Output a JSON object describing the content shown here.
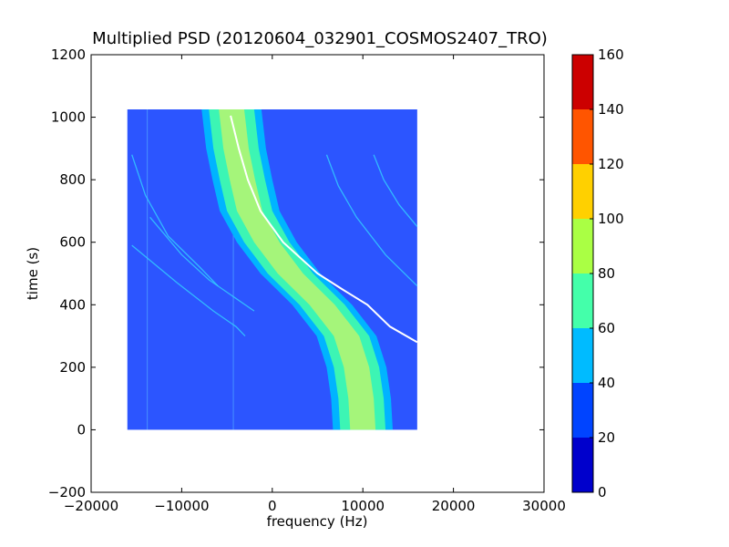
{
  "chart_data": {
    "type": "heatmap",
    "title": "Multiplied PSD (20120604_032901_COSMOS2407_TRO)",
    "xlabel": "frequency (Hz)",
    "ylabel": "time (s)",
    "xlim": [
      -20000,
      30000
    ],
    "ylim": [
      -200,
      1200
    ],
    "xticks": [
      -20000,
      -10000,
      0,
      10000,
      20000,
      30000
    ],
    "xtick_labels": [
      "−20000",
      "−10000",
      "0",
      "10000",
      "20000",
      "30000"
    ],
    "yticks": [
      -200,
      0,
      200,
      400,
      600,
      800,
      1000,
      1200
    ],
    "ytick_labels": [
      "−200",
      "0",
      "200",
      "400",
      "600",
      "800",
      "1000",
      "1200"
    ],
    "data_extent": {
      "x": [
        -16000,
        16000
      ],
      "y": [
        0,
        1025
      ]
    },
    "colorbar": {
      "range": [
        0,
        160
      ],
      "ticks": [
        0,
        20,
        40,
        60,
        80,
        100,
        120,
        140,
        160
      ],
      "tick_labels": [
        "0",
        "20",
        "40",
        "60",
        "80",
        "100",
        "120",
        "140",
        "160"
      ],
      "levels": [
        {
          "from": 0,
          "to": 20,
          "color": "#0000cc"
        },
        {
          "from": 20,
          "to": 40,
          "color": "#0044ff"
        },
        {
          "from": 40,
          "to": 60,
          "color": "#00bbff"
        },
        {
          "from": 60,
          "to": 80,
          "color": "#44ffaa"
        },
        {
          "from": 80,
          "to": 100,
          "color": "#aaff44"
        },
        {
          "from": 100,
          "to": 120,
          "color": "#ffd000"
        },
        {
          "from": 120,
          "to": 140,
          "color": "#ff5500"
        },
        {
          "from": 140,
          "to": 160,
          "color": "#cc0000"
        }
      ]
    },
    "background_color": "#2c55ff",
    "band": {
      "description_points": [
        {
          "time": 1025,
          "center_freq": -4500
        },
        {
          "time": 900,
          "center_freq": -4000
        },
        {
          "time": 800,
          "center_freq": -3300
        },
        {
          "time": 700,
          "center_freq": -2500
        },
        {
          "time": 600,
          "center_freq": -600
        },
        {
          "time": 500,
          "center_freq": 2000
        },
        {
          "time": 400,
          "center_freq": 5500
        },
        {
          "time": 300,
          "center_freq": 8200
        },
        {
          "time": 200,
          "center_freq": 9300
        },
        {
          "time": 100,
          "center_freq": 9800
        },
        {
          "time": 0,
          "center_freq": 10000
        }
      ],
      "layers": [
        {
          "half_width": 3300,
          "color": "#00b4ff"
        },
        {
          "half_width": 2500,
          "color": "#3cf5b4"
        },
        {
          "half_width": 1400,
          "color": "#a5f57a"
        }
      ]
    },
    "white_trace": {
      "color": "#ffffff",
      "points": [
        {
          "time": 1005,
          "freq": -4600
        },
        {
          "time": 900,
          "freq": -3700
        },
        {
          "time": 800,
          "freq": -2700
        },
        {
          "time": 700,
          "freq": -1300
        },
        {
          "time": 600,
          "freq": 1200
        },
        {
          "time": 500,
          "freq": 5000
        },
        {
          "time": 450,
          "freq": 7700
        },
        {
          "time": 400,
          "freq": 10500
        },
        {
          "time": 330,
          "freq": 13000
        },
        {
          "time": 280,
          "freq": 16000
        }
      ]
    },
    "faint_traces": [
      {
        "color": "#33ccff",
        "points": [
          {
            "time": 880,
            "freq": -15500
          },
          {
            "time": 750,
            "freq": -14000
          },
          {
            "time": 620,
            "freq": -11500
          },
          {
            "time": 520,
            "freq": -8000
          },
          {
            "time": 460,
            "freq": -6000
          }
        ]
      },
      {
        "color": "#33ccff",
        "points": [
          {
            "time": 680,
            "freq": -13500
          },
          {
            "time": 560,
            "freq": -10000
          },
          {
            "time": 480,
            "freq": -7000
          },
          {
            "time": 420,
            "freq": -4000
          },
          {
            "time": 380,
            "freq": -2000
          }
        ]
      },
      {
        "color": "#33ccff",
        "points": [
          {
            "time": 590,
            "freq": -15500
          },
          {
            "time": 470,
            "freq": -10500
          },
          {
            "time": 380,
            "freq": -6500
          },
          {
            "time": 330,
            "freq": -4000
          },
          {
            "time": 300,
            "freq": -3000
          }
        ]
      },
      {
        "color": "#33ccff",
        "points": [
          {
            "time": 880,
            "freq": 6000
          },
          {
            "time": 780,
            "freq": 7300
          },
          {
            "time": 680,
            "freq": 9300
          },
          {
            "time": 560,
            "freq": 12500
          },
          {
            "time": 460,
            "freq": 16000
          }
        ]
      },
      {
        "color": "#33ccff",
        "points": [
          {
            "time": 880,
            "freq": 11200
          },
          {
            "time": 800,
            "freq": 12300
          },
          {
            "time": 720,
            "freq": 14000
          },
          {
            "time": 650,
            "freq": 16000
          }
        ]
      },
      {
        "color": "#33ccff",
        "points": [
          {
            "time": 860,
            "freq": -2100
          },
          {
            "time": 780,
            "freq": -800
          },
          {
            "time": 700,
            "freq": 500
          }
        ]
      }
    ],
    "vertical_lines": [
      {
        "freq": -13800,
        "color": "#55aaff"
      },
      {
        "freq": -4300,
        "color": "#55aaff"
      }
    ]
  }
}
